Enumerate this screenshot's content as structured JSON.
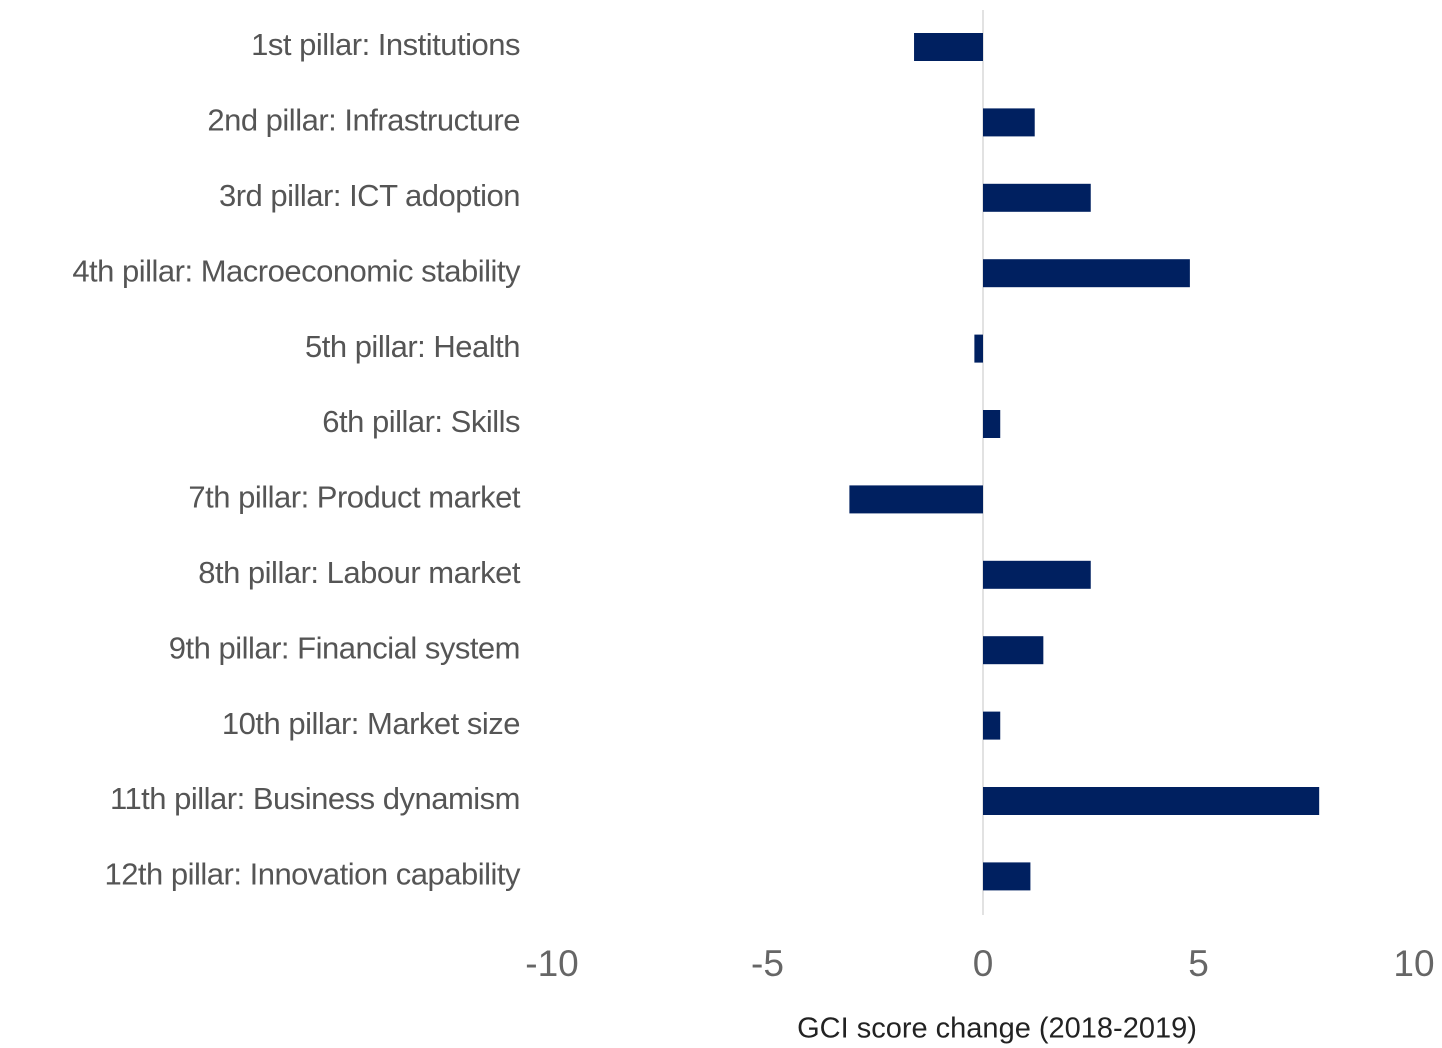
{
  "chart_data": {
    "type": "hbar",
    "categories": [
      "1st pillar: Institutions",
      "2nd pillar: Infrastructure",
      "3rd pillar: ICT adoption",
      "4th pillar: Macroeconomic stability",
      "5th pillar: Health",
      "6th pillar: Skills",
      "7th pillar: Product market",
      "8th pillar: Labour market",
      "9th pillar: Financial system",
      "10th pillar: Market size",
      "11th pillar: Business dynamism",
      "12th pillar: Innovation capability"
    ],
    "values": [
      -1.6,
      1.2,
      2.5,
      4.8,
      -0.2,
      0.4,
      -3.1,
      2.5,
      1.4,
      0.4,
      7.8,
      1.1
    ],
    "color": "#002060",
    "x_label": "GCI score change (2018-2019)",
    "xlim": [
      -10,
      10
    ],
    "xticks": [
      -10,
      -5,
      0,
      5,
      10
    ],
    "grid": false
  }
}
